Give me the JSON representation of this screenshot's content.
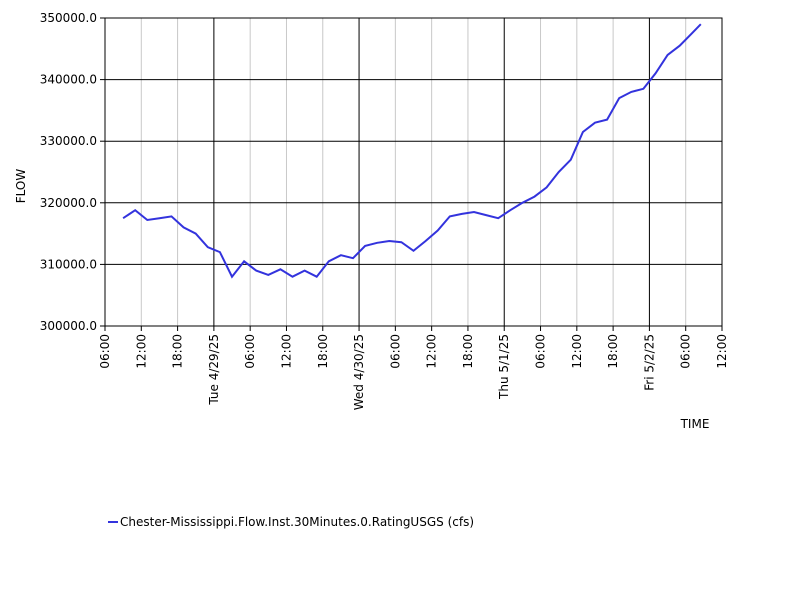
{
  "chart_data": {
    "type": "line",
    "x_label": "TIME",
    "y_label": "FLOW",
    "x": [
      "2025-04-28 09:00",
      "2025-04-28 11:00",
      "2025-04-28 13:00",
      "2025-04-28 15:00",
      "2025-04-28 17:00",
      "2025-04-28 19:00",
      "2025-04-28 21:00",
      "2025-04-28 23:00",
      "2025-04-29 01:00",
      "2025-04-29 03:00",
      "2025-04-29 05:00",
      "2025-04-29 07:00",
      "2025-04-29 09:00",
      "2025-04-29 11:00",
      "2025-04-29 13:00",
      "2025-04-29 15:00",
      "2025-04-29 17:00",
      "2025-04-29 19:00",
      "2025-04-29 21:00",
      "2025-04-29 23:00",
      "2025-04-30 01:00",
      "2025-04-30 03:00",
      "2025-04-30 05:00",
      "2025-04-30 07:00",
      "2025-04-30 09:00",
      "2025-04-30 11:00",
      "2025-04-30 13:00",
      "2025-04-30 15:00",
      "2025-04-30 17:00",
      "2025-04-30 19:00",
      "2025-04-30 21:00",
      "2025-04-30 23:00",
      "2025-05-01 01:00",
      "2025-05-01 03:00",
      "2025-05-01 05:00",
      "2025-05-01 07:00",
      "2025-05-01 09:00",
      "2025-05-01 11:00",
      "2025-05-01 13:00",
      "2025-05-01 15:00",
      "2025-05-01 17:00",
      "2025-05-01 19:00",
      "2025-05-01 21:00",
      "2025-05-01 23:00",
      "2025-05-02 01:00",
      "2025-05-02 03:00",
      "2025-05-02 05:00",
      "2025-05-02 07:00",
      "2025-05-02 08:30"
    ],
    "series": [
      {
        "name": "Chester-Mississippi.Flow.Inst.30Minutes.0.RatingUSGS (cfs)",
        "color": "#3333dd",
        "values": [
          317500,
          318800,
          317200,
          317500,
          317800,
          316000,
          315000,
          312800,
          312000,
          308000,
          310500,
          309000,
          308300,
          309200,
          308000,
          309000,
          308000,
          310500,
          311500,
          311000,
          313000,
          313500,
          313800,
          313600,
          312200,
          313800,
          315500,
          317800,
          318200,
          318500,
          318000,
          317500,
          318800,
          320000,
          321000,
          322500,
          325000,
          327000,
          331500,
          333000,
          333500,
          337000,
          338000,
          338500,
          341000,
          344000,
          345500,
          347500,
          349000
        ]
      }
    ],
    "xlim": [
      "2025-04-28 06:00",
      "2025-05-02 12:00"
    ],
    "xticks": [
      {
        "value": "2025-04-28 06:00",
        "label": "06:00"
      },
      {
        "value": "2025-04-28 12:00",
        "label": "12:00"
      },
      {
        "value": "2025-04-28 18:00",
        "label": "18:00"
      },
      {
        "value": "2025-04-29 00:00",
        "label": "Tue 4/29/25"
      },
      {
        "value": "2025-04-29 06:00",
        "label": "06:00"
      },
      {
        "value": "2025-04-29 12:00",
        "label": "12:00"
      },
      {
        "value": "2025-04-29 18:00",
        "label": "18:00"
      },
      {
        "value": "2025-04-30 00:00",
        "label": "Wed 4/30/25"
      },
      {
        "value": "2025-04-30 06:00",
        "label": "06:00"
      },
      {
        "value": "2025-04-30 12:00",
        "label": "12:00"
      },
      {
        "value": "2025-04-30 18:00",
        "label": "18:00"
      },
      {
        "value": "2025-05-01 00:00",
        "label": "Thu 5/1/25"
      },
      {
        "value": "2025-05-01 06:00",
        "label": "06:00"
      },
      {
        "value": "2025-05-01 12:00",
        "label": "12:00"
      },
      {
        "value": "2025-05-01 18:00",
        "label": "18:00"
      },
      {
        "value": "2025-05-02 00:00",
        "label": "Fri 5/2/25"
      },
      {
        "value": "2025-05-02 06:00",
        "label": "06:00"
      },
      {
        "value": "2025-05-02 12:00",
        "label": "12:00"
      }
    ],
    "ylim": [
      300000,
      350000
    ],
    "yticks": [
      {
        "value": 300000,
        "label": "300000.0"
      },
      {
        "value": 310000,
        "label": "310000.0"
      },
      {
        "value": 320000,
        "label": "320000.0"
      },
      {
        "value": 330000,
        "label": "330000.0"
      },
      {
        "value": 340000,
        "label": "340000.0"
      },
      {
        "value": 350000,
        "label": "350000.0"
      }
    ],
    "grid": true,
    "legend": "bottom-left"
  }
}
